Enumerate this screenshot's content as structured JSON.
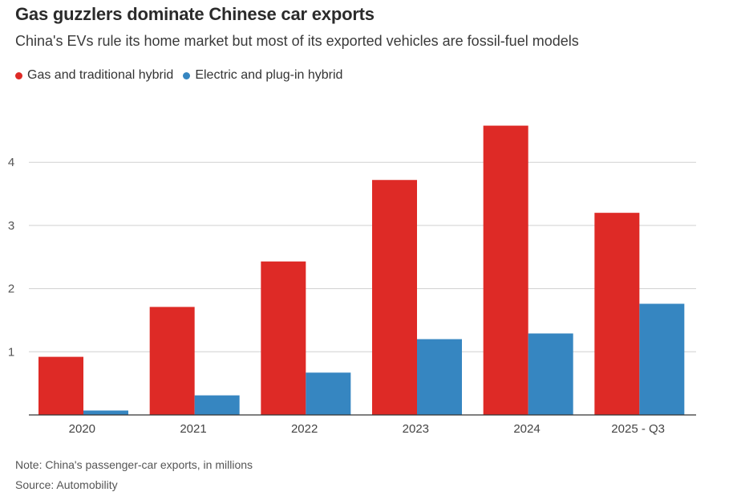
{
  "header": {
    "title": "Gas guzzlers dominate Chinese car exports",
    "subtitle": "China's EVs rule its home market but most of its exported vehicles are fossil-fuel models"
  },
  "footer": {
    "note": "Note: China's passenger-car exports, in millions",
    "source": "Source: Automobility"
  },
  "colors": {
    "gas": "#de2a26",
    "electric": "#3686c1",
    "grid": "#d0d0d0",
    "axis": "#333333"
  },
  "chart_data": {
    "type": "bar",
    "title": "Gas guzzlers dominate Chinese car exports",
    "subtitle": "China's EVs rule its home market but most of its exported vehicles are fossil-fuel models",
    "xlabel": "",
    "ylabel": "",
    "categories": [
      "2020",
      "2021",
      "2022",
      "2023",
      "2024",
      "2025 - Q3"
    ],
    "series": [
      {
        "name": "Gas and traditional hybrid",
        "values": [
          0.92,
          1.71,
          2.43,
          3.72,
          4.58,
          3.2
        ]
      },
      {
        "name": "Electric and plug-in hybrid",
        "values": [
          0.07,
          0.31,
          0.67,
          1.2,
          1.29,
          1.76
        ]
      }
    ],
    "yticks": [
      1,
      2,
      3,
      4
    ],
    "ylim": [
      0,
      4.8
    ],
    "grid": true,
    "legend": "top-left"
  }
}
